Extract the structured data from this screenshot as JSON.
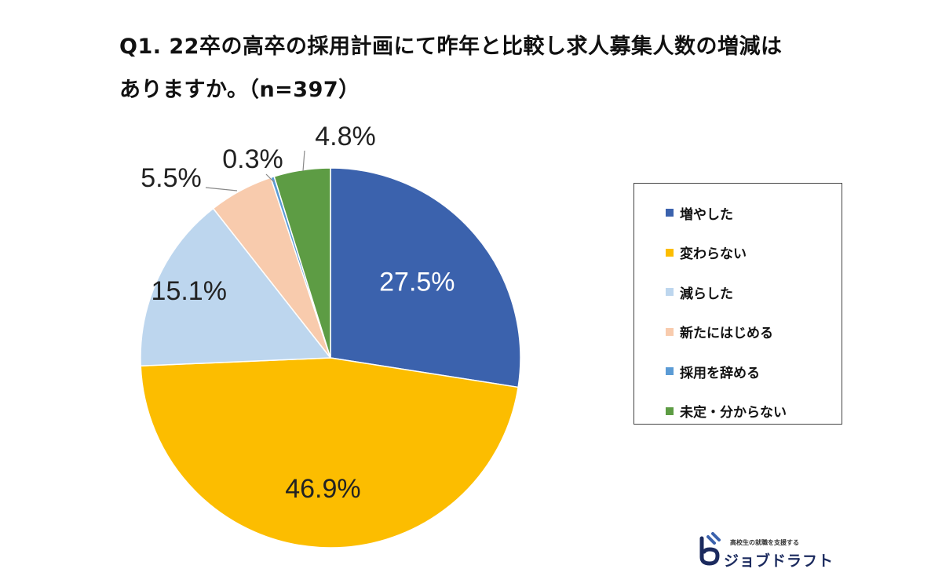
{
  "title_lines": [
    "Q1. 22卒の高卒の採用計画にて昨年と比較し求人募集人数の増減は",
    "ありますか。（n=397）"
  ],
  "chart_data": {
    "type": "pie",
    "title": "Q1. 22卒の高卒の採用計画にて昨年と比較し求人募集人数の増減はありますか。（n=397）",
    "legend_position": "right",
    "slices": [
      {
        "label": "増やした",
        "value": 27.5,
        "display": "27.5%",
        "color": "#3b62ad"
      },
      {
        "label": "変わらない",
        "value": 46.9,
        "display": "46.9%",
        "color": "#fcbd00"
      },
      {
        "label": "減らした",
        "value": 15.1,
        "display": "15.1%",
        "color": "#bdd6ee"
      },
      {
        "label": "新たにはじめる",
        "value": 5.5,
        "display": "5.5%",
        "color": "#f8cbad"
      },
      {
        "label": "採用を辞める",
        "value": 0.3,
        "display": "0.3%",
        "color": "#5b9bd5"
      },
      {
        "label": "未定・分からない",
        "value": 4.8,
        "display": "4.8%",
        "color": "#5d9c44"
      }
    ]
  },
  "logo": {
    "tagline": "高校生の就職を支援する",
    "name": "ジョブドラフト"
  }
}
